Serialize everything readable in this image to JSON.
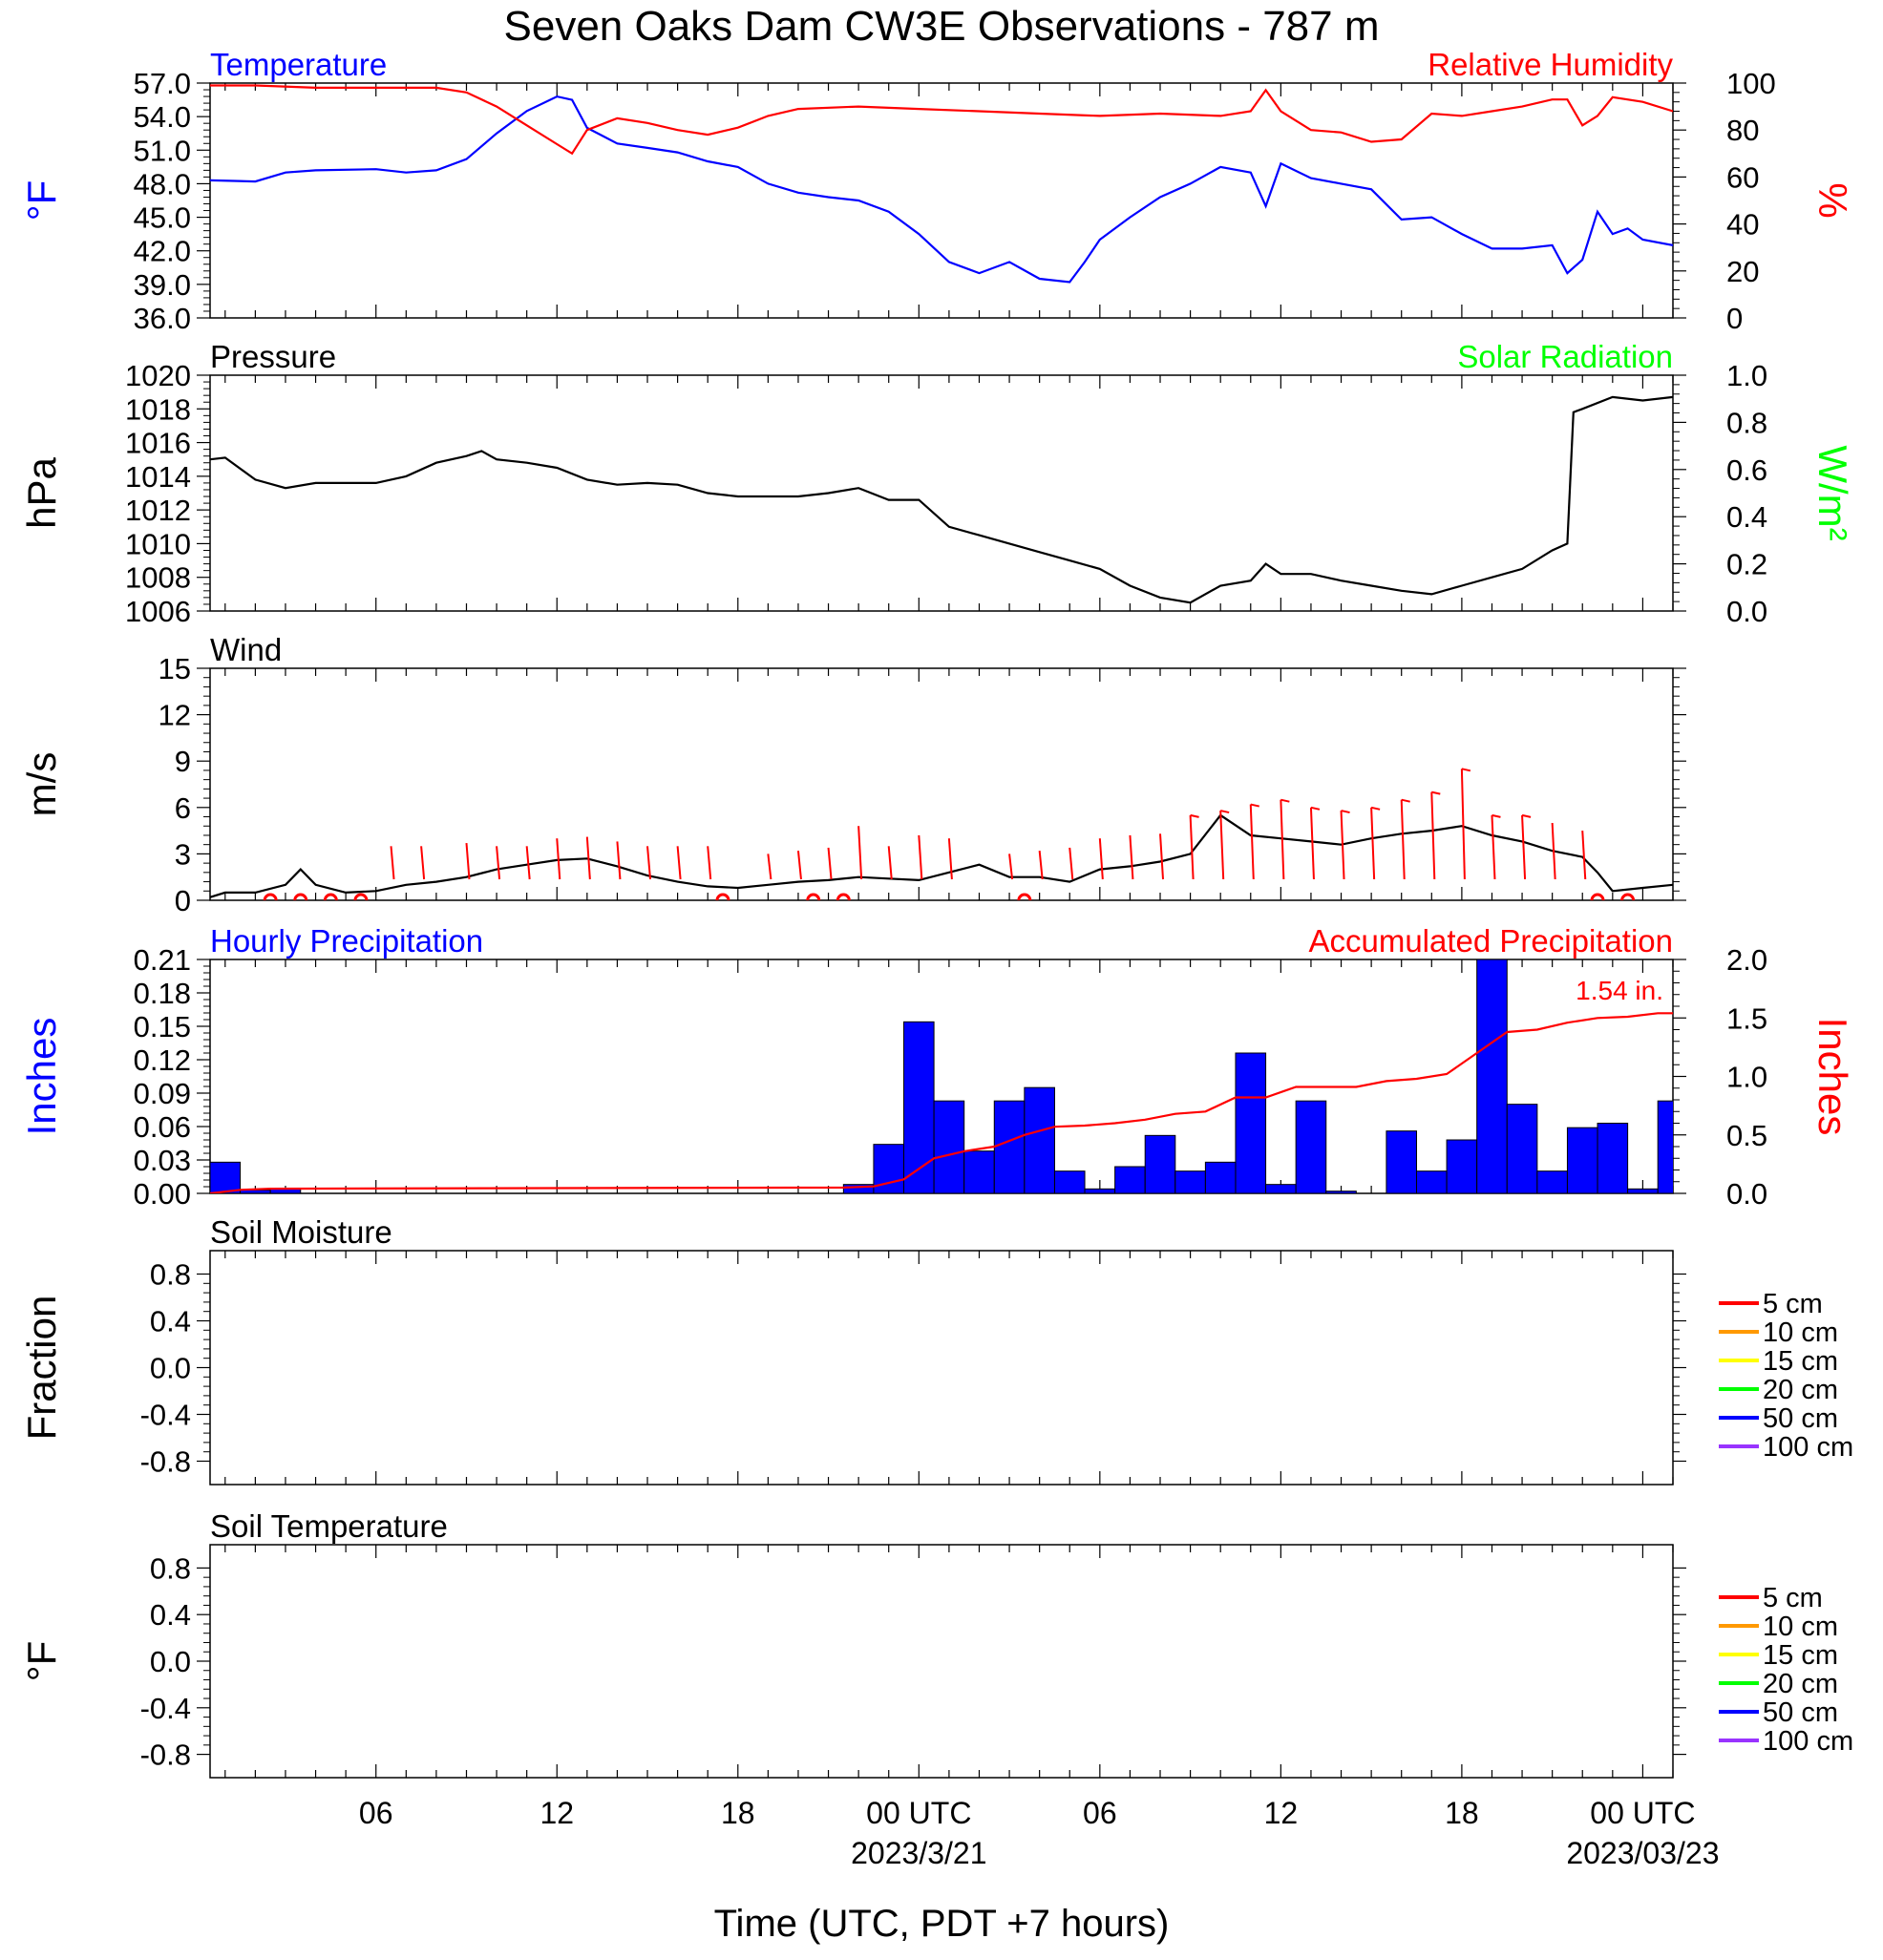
{
  "figure": {
    "title": "Seven Oaks Dam CW3E Observations - 787 m",
    "xlabel": "Time (UTC, PDT +7 hours)",
    "x_ticks": [
      "06",
      "12",
      "18",
      "00 UTC",
      "06",
      "12",
      "18",
      "00 UTC"
    ],
    "x_tick_hours": [
      6,
      12,
      18,
      24,
      30,
      36,
      42,
      48
    ],
    "x_dates": [
      {
        "hour": 24,
        "text": "2023/3/21"
      },
      {
        "hour": 48,
        "text": "2023/03/23"
      }
    ],
    "x_range_hours": [
      0.5,
      49
    ],
    "colors": {
      "blue": "#0000ff",
      "red": "#ff0000",
      "green": "#00ff00",
      "black": "#000000"
    }
  },
  "chart_data": [
    {
      "type": "line",
      "panel": "temperature",
      "title_left": "Temperature",
      "title_right": "Relative Humidity",
      "ylabel_left": "°F",
      "ylabel_right": "%",
      "ylim_left": [
        36,
        57
      ],
      "yticks_left": [
        "36.0",
        "39.0",
        "42.0",
        "45.0",
        "48.0",
        "51.0",
        "54.0",
        "57.0"
      ],
      "ylim_right": [
        0,
        100
      ],
      "yticks_right": [
        "0",
        "20",
        "40",
        "60",
        "80",
        "100"
      ],
      "series": [
        {
          "name": "Temperature",
          "color": "#0000ff",
          "axis": "left",
          "x": [
            0.5,
            2,
            3,
            4,
            6,
            7,
            8,
            9,
            10,
            11,
            12,
            12.5,
            13,
            14,
            15,
            16,
            17,
            18,
            19,
            20,
            21,
            22,
            23,
            24,
            25,
            26,
            27,
            28,
            29,
            29.5,
            30,
            31,
            32,
            33,
            34,
            35,
            35.5,
            36,
            37,
            38,
            39,
            40,
            41,
            42,
            43,
            44,
            45,
            45.5,
            46,
            46.5,
            47,
            47.5,
            48,
            49
          ],
          "y": [
            48.3,
            48.2,
            49.0,
            49.2,
            49.3,
            49.0,
            49.2,
            50.2,
            52.5,
            54.5,
            55.8,
            55.5,
            53.0,
            51.6,
            51.2,
            50.8,
            50.0,
            49.5,
            48.0,
            47.2,
            46.8,
            46.5,
            45.5,
            43.5,
            41.0,
            40.0,
            41.0,
            39.5,
            39.2,
            41.0,
            43.0,
            45.0,
            46.8,
            48.0,
            49.5,
            49.0,
            46.0,
            49.8,
            48.5,
            48.0,
            47.5,
            44.8,
            45.0,
            43.5,
            42.2,
            42.2,
            42.5,
            40.0,
            41.2,
            45.5,
            43.5,
            44.0,
            43.0,
            42.5
          ]
        },
        {
          "name": "Relative Humidity",
          "color": "#ff0000",
          "axis": "right",
          "x": [
            0.5,
            2,
            4,
            6,
            8,
            9,
            10,
            11,
            12,
            12.5,
            13,
            14,
            15,
            16,
            17,
            18,
            19,
            20,
            22,
            24,
            26,
            28,
            30,
            32,
            34,
            35,
            35.5,
            36,
            37,
            38,
            39,
            40,
            41,
            42,
            43,
            44,
            45,
            45.5,
            46,
            46.5,
            47,
            48,
            49
          ],
          "y": [
            99,
            99,
            98,
            98,
            98,
            96,
            90,
            82,
            74,
            70,
            80,
            85,
            83,
            80,
            78,
            81,
            86,
            89,
            90,
            89,
            88,
            87,
            86,
            87,
            86,
            88,
            97,
            88,
            80,
            79,
            75,
            76,
            87,
            86,
            88,
            90,
            93,
            93,
            82,
            86,
            94,
            92,
            88
          ]
        }
      ]
    },
    {
      "type": "line",
      "panel": "pressure",
      "title_left": "Pressure",
      "title_right": "Solar Radiation",
      "ylabel_left": "hPa",
      "ylabel_right": "W/m²",
      "ylim_left": [
        1006,
        1020
      ],
      "yticks_left": [
        "1006",
        "1008",
        "1010",
        "1012",
        "1014",
        "1016",
        "1018",
        "1020"
      ],
      "ylim_right": [
        0,
        1
      ],
      "yticks_right": [
        "0.0",
        "0.2",
        "0.4",
        "0.6",
        "0.8",
        "1.0"
      ],
      "series": [
        {
          "name": "Pressure",
          "color": "#000000",
          "axis": "left",
          "x": [
            0.5,
            1,
            2,
            3,
            4,
            5,
            6,
            7,
            8,
            9,
            9.5,
            10,
            11,
            12,
            13,
            14,
            15,
            16,
            17,
            18,
            19,
            20,
            21,
            22,
            23,
            24,
            25,
            26,
            27,
            28,
            29,
            30,
            31,
            32,
            33,
            34,
            35,
            35.5,
            36,
            37,
            38,
            39,
            40,
            41,
            42,
            43,
            44,
            45,
            45.5,
            45.7,
            46,
            47,
            48,
            49
          ],
          "y": [
            1015.0,
            1015.1,
            1013.8,
            1013.3,
            1013.6,
            1013.6,
            1013.6,
            1014.0,
            1014.8,
            1015.2,
            1015.5,
            1015.0,
            1014.8,
            1014.5,
            1013.8,
            1013.5,
            1013.6,
            1013.5,
            1013.0,
            1012.8,
            1012.8,
            1012.8,
            1013.0,
            1013.3,
            1012.6,
            1012.6,
            1011.0,
            1010.5,
            1010.0,
            1009.5,
            1009.0,
            1008.5,
            1007.5,
            1006.8,
            1006.5,
            1007.5,
            1007.8,
            1008.8,
            1008.2,
            1008.2,
            1007.8,
            1007.5,
            1007.2,
            1007.0,
            1007.5,
            1008.0,
            1008.5,
            1009.6,
            1010.0,
            1017.8,
            1018.0,
            1018.7,
            1018.5,
            1018.7
          ]
        }
      ]
    },
    {
      "type": "line",
      "panel": "wind",
      "title_left": "Wind",
      "ylabel_left": "m/s",
      "ylim_left": [
        0,
        15
      ],
      "yticks_left": [
        "0",
        "3",
        "6",
        "9",
        "12",
        "15"
      ],
      "series": [
        {
          "name": "Wind",
          "color": "#000000",
          "axis": "left",
          "x": [
            0.5,
            1,
            2,
            3,
            3.5,
            4,
            5,
            6,
            7,
            8,
            9,
            10,
            11,
            12,
            13,
            14,
            15,
            16,
            17,
            18,
            19,
            20,
            21,
            22,
            23,
            24,
            25,
            26,
            27,
            28,
            29,
            30,
            31,
            32,
            33,
            34,
            35,
            36,
            37,
            38,
            39,
            40,
            41,
            42,
            43,
            44,
            45,
            46,
            46.5,
            47,
            48,
            49
          ],
          "y": [
            0.2,
            0.5,
            0.5,
            1.0,
            2.0,
            1.0,
            0.5,
            0.6,
            1.0,
            1.2,
            1.5,
            2.0,
            2.3,
            2.6,
            2.7,
            2.2,
            1.6,
            1.2,
            0.9,
            0.8,
            1.0,
            1.2,
            1.3,
            1.5,
            1.4,
            1.3,
            1.8,
            2.3,
            1.5,
            1.5,
            1.2,
            2.0,
            2.2,
            2.5,
            3.0,
            5.5,
            4.2,
            4.0,
            3.8,
            3.6,
            4.0,
            4.3,
            4.5,
            4.8,
            4.2,
            3.8,
            3.2,
            2.8,
            1.8,
            0.6,
            0.8,
            1.0
          ]
        }
      ],
      "barbs_red": [
        {
          "x": 6.5,
          "h": 3.5
        },
        {
          "x": 7.5,
          "h": 3.5
        },
        {
          "x": 9,
          "h": 3.7
        },
        {
          "x": 10,
          "h": 3.5
        },
        {
          "x": 11,
          "h": 3.5
        },
        {
          "x": 12,
          "h": 4.0
        },
        {
          "x": 13,
          "h": 4.1
        },
        {
          "x": 14,
          "h": 3.8
        },
        {
          "x": 15,
          "h": 3.5
        },
        {
          "x": 16,
          "h": 3.5
        },
        {
          "x": 17,
          "h": 3.5
        },
        {
          "x": 19,
          "h": 3.0
        },
        {
          "x": 20,
          "h": 3.2
        },
        {
          "x": 21,
          "h": 3.4
        },
        {
          "x": 22,
          "h": 4.8
        },
        {
          "x": 23,
          "h": 3.5
        },
        {
          "x": 24,
          "h": 4.2
        },
        {
          "x": 25,
          "h": 4.0
        },
        {
          "x": 27,
          "h": 3.0
        },
        {
          "x": 28,
          "h": 3.2
        },
        {
          "x": 29,
          "h": 3.4
        },
        {
          "x": 30,
          "h": 4.0
        },
        {
          "x": 31,
          "h": 4.2
        },
        {
          "x": 32,
          "h": 4.3
        },
        {
          "x": 33,
          "h": 5.5
        },
        {
          "x": 34,
          "h": 5.8
        },
        {
          "x": 35,
          "h": 6.2
        },
        {
          "x": 36,
          "h": 6.5
        },
        {
          "x": 37,
          "h": 6.0
        },
        {
          "x": 38,
          "h": 5.8
        },
        {
          "x": 39,
          "h": 6.0
        },
        {
          "x": 40,
          "h": 6.5
        },
        {
          "x": 41,
          "h": 7.0
        },
        {
          "x": 42,
          "h": 8.5
        },
        {
          "x": 43,
          "h": 5.5
        },
        {
          "x": 44,
          "h": 5.5
        },
        {
          "x": 45,
          "h": 5.0
        },
        {
          "x": 46,
          "h": 4.5
        }
      ],
      "calm_circles_x": [
        2.5,
        3.5,
        4.5,
        5.5,
        17.5,
        20.5,
        21.5,
        27.5,
        46.5,
        47.5
      ]
    },
    {
      "type": "bar",
      "panel": "precipitation",
      "title_left": "Hourly Precipitation",
      "title_right": "Accumulated Precipitation",
      "annotation": "1.54 in.",
      "ylabel_left": "Inches",
      "ylabel_right": "Inches",
      "ylim_left": [
        0,
        0.21
      ],
      "yticks_left": [
        "0.00",
        "0.03",
        "0.06",
        "0.09",
        "0.12",
        "0.15",
        "0.18",
        "0.21"
      ],
      "ylim_right": [
        0,
        2
      ],
      "yticks_right": [
        "0.0",
        "0.5",
        "1.0",
        "1.5",
        "2.0"
      ],
      "bars": {
        "name": "Hourly Precipitation",
        "color": "#0000ff",
        "start_hours": [
          0.5,
          1.5,
          2.5,
          21.5,
          22.5,
          23.5,
          24.5,
          25.5,
          26.5,
          27.5,
          28.5,
          29.5,
          30.5,
          31.5,
          32.5,
          33.5,
          34.5,
          35.5,
          36.5,
          37.5,
          39.5,
          40.5,
          41.5,
          42.5,
          43.5,
          44.5,
          45.5,
          46.5,
          47.5,
          48.5
        ],
        "values": [
          0.028,
          0.003,
          0.004,
          0.008,
          0.044,
          0.154,
          0.083,
          0.038,
          0.083,
          0.095,
          0.02,
          0.004,
          0.024,
          0.052,
          0.02,
          0.028,
          0.126,
          0.008,
          0.083,
          0.002,
          0.056,
          0.02,
          0.048,
          0.21,
          0.08,
          0.02,
          0.059,
          0.063,
          0.004,
          0.083
        ]
      },
      "series": [
        {
          "name": "Accumulated Precipitation",
          "color": "#ff0000",
          "axis": "right",
          "x": [
            0.5,
            1.5,
            2.5,
            21.5,
            22.5,
            23.5,
            24.5,
            25.5,
            26.5,
            27.5,
            28.5,
            29.5,
            30.5,
            31.5,
            32.5,
            33.5,
            34.5,
            35.5,
            36.5,
            37.5,
            38.5,
            39.5,
            40.5,
            41.5,
            42.5,
            43.5,
            44.5,
            45.5,
            46.5,
            47.5,
            48.5,
            49
          ],
          "y": [
            0.0,
            0.03,
            0.04,
            0.05,
            0.06,
            0.12,
            0.3,
            0.36,
            0.4,
            0.5,
            0.57,
            0.58,
            0.6,
            0.63,
            0.68,
            0.7,
            0.82,
            0.82,
            0.91,
            0.91,
            0.91,
            0.96,
            0.98,
            1.02,
            1.2,
            1.38,
            1.4,
            1.46,
            1.5,
            1.51,
            1.54,
            1.54
          ]
        }
      ]
    },
    {
      "type": "line",
      "panel": "soil_moisture",
      "title_left": "Soil Moisture",
      "ylabel_left": "Fraction",
      "ylim_left": [
        -1,
        1
      ],
      "yticks_left": [
        "-0.8",
        "-0.4",
        "0.0",
        "0.4",
        "0.8"
      ],
      "legend": [
        {
          "label": "5 cm",
          "color": "#ff0000"
        },
        {
          "label": "10 cm",
          "color": "#ff9900"
        },
        {
          "label": "15 cm",
          "color": "#ffff00"
        },
        {
          "label": "20 cm",
          "color": "#00ff00"
        },
        {
          "label": "50 cm",
          "color": "#0000ff"
        },
        {
          "label": "100 cm",
          "color": "#9933ff"
        }
      ],
      "series": []
    },
    {
      "type": "line",
      "panel": "soil_temperature",
      "title_left": "Soil Temperature",
      "ylabel_left": "°F",
      "ylim_left": [
        -1,
        1
      ],
      "yticks_left": [
        "-0.8",
        "-0.4",
        "0.0",
        "0.4",
        "0.8"
      ],
      "legend": [
        {
          "label": "5 cm",
          "color": "#ff0000"
        },
        {
          "label": "10 cm",
          "color": "#ff9900"
        },
        {
          "label": "15 cm",
          "color": "#ffff00"
        },
        {
          "label": "20 cm",
          "color": "#00ff00"
        },
        {
          "label": "50 cm",
          "color": "#0000ff"
        },
        {
          "label": "100 cm",
          "color": "#9933ff"
        }
      ],
      "series": []
    }
  ]
}
